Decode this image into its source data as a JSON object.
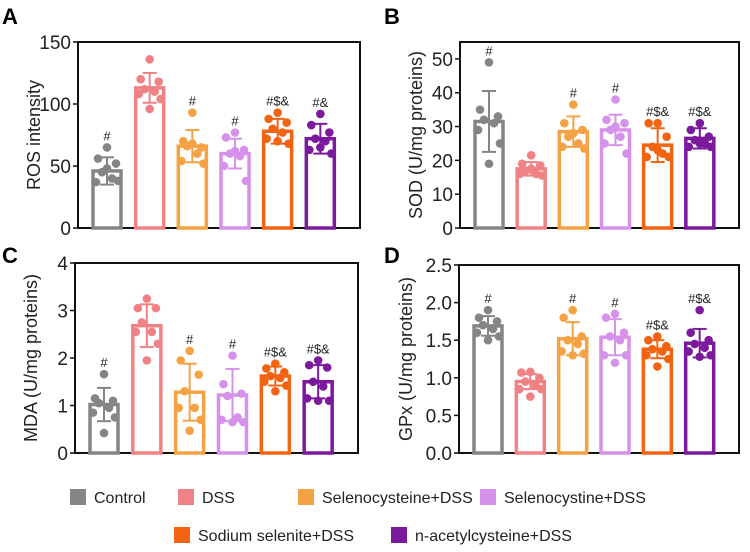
{
  "colors": {
    "Control": "#858585",
    "DSS": "#f08285",
    "Selenocysteine+DSS": "#f4a244",
    "Selenocystine+DSS": "#d692ea",
    "Sodium selenite+DSS": "#f26412",
    "n-acetylcysteine+DSS": "#7b1a9c"
  },
  "legend": [
    "Control",
    "DSS",
    "Selenocysteine+DSS",
    "Selenocystine+DSS",
    "Sodium selenite+DSS",
    "n-acetylcysteine+DSS"
  ],
  "chart_data": [
    {
      "panel": "A",
      "type": "bar",
      "ylabel": "ROS intensity",
      "ylim": [
        0,
        150
      ],
      "yticks": [
        "0",
        "50",
        "100",
        "150"
      ],
      "categories": [
        "Control",
        "DSS",
        "Selenocysteine+DSS",
        "Selenocystine+DSS",
        "Sodium selenite+DSS",
        "n-acetylcysteine+DSS"
      ],
      "values": [
        46,
        113,
        66,
        60,
        78,
        72
      ],
      "errors": [
        11,
        12,
        13,
        12,
        10,
        12
      ],
      "annotations": [
        "#",
        "",
        "#",
        "#",
        "#$&",
        "#&"
      ],
      "points": [
        [
          65,
          56,
          52,
          45,
          40,
          37,
          38,
          48
        ],
        [
          136,
          120,
          118,
          112,
          110,
          108,
          104,
          96
        ],
        [
          93,
          70,
          65,
          66,
          60,
          54,
          52,
          68
        ],
        [
          77,
          73,
          63,
          60,
          58,
          50,
          38,
          62
        ],
        [
          93,
          88,
          85,
          80,
          77,
          72,
          68,
          70
        ],
        [
          92,
          83,
          77,
          72,
          70,
          63,
          60,
          65
        ]
      ]
    },
    {
      "panel": "B",
      "type": "bar",
      "ylabel": "SOD (U/mg proteins)",
      "ylim": [
        0,
        55
      ],
      "yticks": [
        "0",
        "10",
        "20",
        "30",
        "40",
        "50"
      ],
      "categories": [
        "Control",
        "DSS",
        "Selenocysteine+DSS",
        "Selenocystine+DSS",
        "Sodium selenite+DSS",
        "n-acetylcysteine+DSS"
      ],
      "values": [
        31.5,
        17.5,
        28.5,
        29,
        24.5,
        26.5
      ],
      "errors": [
        9,
        2,
        4.5,
        4.5,
        5,
        3
      ],
      "annotations": [
        "#",
        "",
        "#",
        "#",
        "#$&",
        "#$&"
      ],
      "points": [
        [
          49,
          35,
          33,
          32,
          31,
          29,
          25,
          19
        ],
        [
          21.5,
          19,
          18.5,
          17,
          16,
          16,
          15.5,
          17.5
        ],
        [
          36.5,
          31,
          29,
          27,
          25,
          24,
          23.5,
          28
        ],
        [
          38,
          32,
          31,
          29,
          27,
          25,
          22,
          30
        ],
        [
          31,
          31,
          27,
          24,
          22,
          21,
          21,
          23
        ],
        [
          31,
          29,
          27,
          26,
          25,
          24,
          24,
          25
        ]
      ]
    },
    {
      "panel": "C",
      "type": "bar",
      "ylabel": "MDA  (U/mg proteins)",
      "ylim": [
        0,
        4
      ],
      "yticks": [
        "0",
        "1",
        "2",
        "3",
        "4"
      ],
      "categories": [
        "Control",
        "DSS",
        "Selenocysteine+DSS",
        "Selenocystine+DSS",
        "Sodium selenite+DSS",
        "n-acetylcysteine+DSS"
      ],
      "values": [
        1.02,
        2.68,
        1.28,
        1.22,
        1.62,
        1.5
      ],
      "errors": [
        0.35,
        0.45,
        0.6,
        0.55,
        0.2,
        0.35
      ],
      "annotations": [
        "#",
        "",
        "#",
        "#",
        "#$&",
        "#$&"
      ],
      "points": [
        [
          1.66,
          1.15,
          1.1,
          1.05,
          0.95,
          0.85,
          0.75,
          0.42
        ],
        [
          3.25,
          3.05,
          3.05,
          2.75,
          2.55,
          2.55,
          2.3,
          1.95
        ],
        [
          2.15,
          1.95,
          1.65,
          1.3,
          0.95,
          0.95,
          0.7,
          0.47
        ],
        [
          2.05,
          1.45,
          1.25,
          1.2,
          0.75,
          0.7,
          0.65,
          0.65
        ],
        [
          1.88,
          1.78,
          1.7,
          1.62,
          1.58,
          1.5,
          1.42,
          1.3
        ],
        [
          1.95,
          1.85,
          1.8,
          1.5,
          1.4,
          1.15,
          1.1,
          1.1
        ]
      ]
    },
    {
      "panel": "D",
      "type": "bar",
      "ylabel": "GPx (U/mg proteins)",
      "ylim": [
        0,
        2.5
      ],
      "yticks": [
        "0.0",
        "0.5",
        "1.0",
        "1.5",
        "2.0",
        "2.5"
      ],
      "categories": [
        "Control",
        "DSS",
        "Selenocysteine+DSS",
        "Selenocystine+DSS",
        "Sodium selenite+DSS",
        "n-acetylcysteine+DSS"
      ],
      "values": [
        1.69,
        0.95,
        1.52,
        1.54,
        1.38,
        1.46
      ],
      "errors": [
        0.13,
        0.1,
        0.22,
        0.24,
        0.12,
        0.19
      ],
      "annotations": [
        "#",
        "",
        "#",
        "#",
        "#$&",
        "#$&"
      ],
      "points": [
        [
          1.9,
          1.8,
          1.75,
          1.7,
          1.65,
          1.6,
          1.55,
          1.5
        ],
        [
          1.08,
          1.07,
          1.0,
          0.95,
          0.9,
          0.85,
          0.85,
          0.75
        ],
        [
          1.9,
          1.8,
          1.55,
          1.5,
          1.45,
          1.35,
          1.32,
          1.3
        ],
        [
          1.85,
          1.8,
          1.6,
          1.55,
          1.5,
          1.3,
          1.3,
          1.2
        ],
        [
          1.55,
          1.5,
          1.42,
          1.38,
          1.35,
          1.3,
          1.25,
          1.15
        ],
        [
          1.9,
          1.6,
          1.5,
          1.45,
          1.4,
          1.35,
          1.3,
          1.28
        ]
      ]
    }
  ]
}
